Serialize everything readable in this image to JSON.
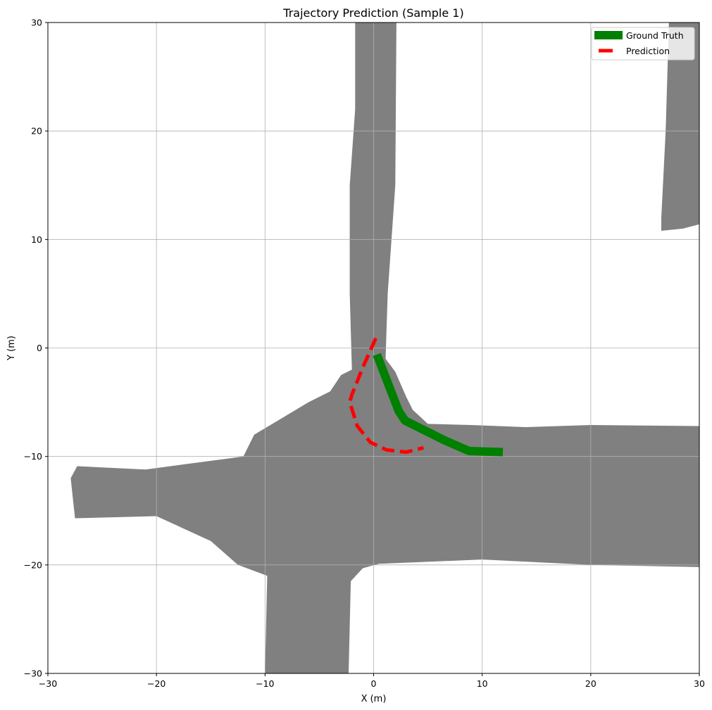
{
  "chart_data": {
    "type": "line",
    "title": "Trajectory Prediction (Sample 1)",
    "xlabel": "X (m)",
    "ylabel": "Y (m)",
    "xlim": [
      -30,
      30
    ],
    "ylim": [
      -30,
      30
    ],
    "xticks": [
      -30,
      -20,
      -10,
      0,
      10,
      20,
      30
    ],
    "yticks": [
      -30,
      -20,
      -10,
      0,
      10,
      20,
      30
    ],
    "xtick_labels": [
      "−30",
      "−20",
      "−10",
      "0",
      "10",
      "20",
      "30"
    ],
    "ytick_labels": [
      "−30",
      "−20",
      "−10",
      "0",
      "10",
      "20",
      "30"
    ],
    "grid": true,
    "legend_position": "top-right",
    "series": [
      {
        "name": "Ground Truth",
        "color": "#008000",
        "style": "solid",
        "x": [
          0.3,
          2.3,
          2.9,
          4.5,
          6.5,
          8.8,
          11.9
        ],
        "y": [
          -0.6,
          -5.8,
          -6.7,
          -7.5,
          -8.5,
          -9.5,
          -9.6
        ]
      },
      {
        "name": "Prediction",
        "color": "#ff0000",
        "style": "dashed",
        "x": [
          0.2,
          -1.0,
          -2.0,
          -2.2,
          -1.5,
          -0.3,
          1.2,
          3.0,
          4.6
        ],
        "y": [
          0.9,
          -1.8,
          -4.3,
          -5.0,
          -7.2,
          -8.7,
          -9.4,
          -9.6,
          -9.2
        ]
      }
    ],
    "map_regions": {
      "color": "#808080",
      "polygons": [
        [
          [
            -1.7,
            30
          ],
          [
            2.1,
            30
          ],
          [
            2.0,
            15
          ],
          [
            1.3,
            5
          ],
          [
            1.1,
            -1.0
          ],
          [
            2.0,
            -2.2
          ],
          [
            3.0,
            -4.5
          ],
          [
            3.6,
            -5.7
          ],
          [
            5.0,
            -7.0
          ],
          [
            9.0,
            -7.1
          ],
          [
            14.0,
            -7.3
          ],
          [
            20.0,
            -7.1
          ],
          [
            30.0,
            -7.2
          ],
          [
            30.0,
            -20.2
          ],
          [
            20.0,
            -20.0
          ],
          [
            10.0,
            -19.5
          ],
          [
            0.5,
            -19.9
          ],
          [
            -1.0,
            -20.3
          ],
          [
            -2.1,
            -21.5
          ],
          [
            -2.3,
            -30.0
          ],
          [
            -10.0,
            -30.0
          ],
          [
            -9.8,
            -21.0
          ],
          [
            -12.5,
            -20.0
          ],
          [
            -15.0,
            -17.8
          ],
          [
            -20.0,
            -15.5
          ],
          [
            -27.5,
            -15.7
          ],
          [
            -27.9,
            -12.0
          ],
          [
            -27.3,
            -10.9
          ],
          [
            -21.0,
            -11.2
          ],
          [
            -12.0,
            -10.0
          ],
          [
            -11.0,
            -8.0
          ],
          [
            -8.5,
            -6.5
          ],
          [
            -6.0,
            -5.0
          ],
          [
            -4.0,
            -4.0
          ],
          [
            -3.0,
            -2.5
          ],
          [
            -2.0,
            -2.0
          ],
          [
            -2.2,
            5.0
          ],
          [
            -2.2,
            15.0
          ],
          [
            -1.7,
            22.0
          ],
          [
            -1.7,
            30
          ]
        ],
        [
          [
            27.2,
            30
          ],
          [
            30.0,
            30
          ],
          [
            30.0,
            11.4
          ],
          [
            28.5,
            11.0
          ],
          [
            26.5,
            10.8
          ],
          [
            26.5,
            12.0
          ],
          [
            26.9,
            20.0
          ],
          [
            27.2,
            30
          ]
        ]
      ]
    }
  }
}
